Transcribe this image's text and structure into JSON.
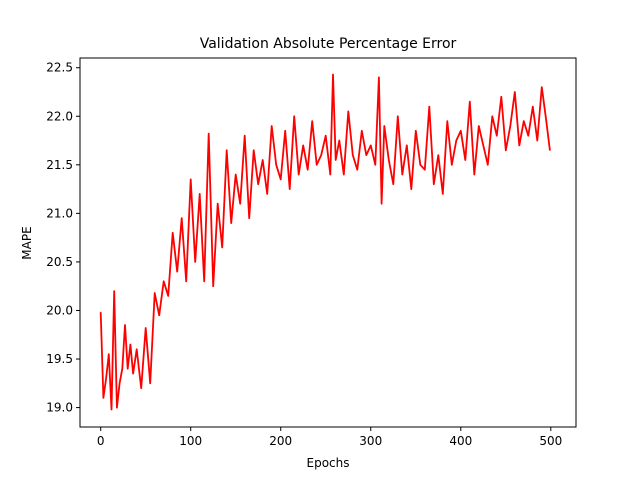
{
  "chart_data": {
    "type": "line",
    "title": "Validation Absolute Percentage Error",
    "xlabel": "Epochs",
    "ylabel": "MAPE",
    "xlim": [
      -23,
      528
    ],
    "ylim": [
      18.8,
      22.6
    ],
    "xticks": [
      0,
      100,
      200,
      300,
      400,
      500
    ],
    "yticks": [
      19.0,
      19.5,
      20.0,
      20.5,
      21.0,
      21.5,
      22.0,
      22.5
    ],
    "xtick_labels": [
      "0",
      "100",
      "200",
      "300",
      "400",
      "500"
    ],
    "ytick_labels": [
      "19.0",
      "19.5",
      "20.0",
      "20.5",
      "21.0",
      "21.5",
      "22.0",
      "22.5"
    ],
    "grid": false,
    "series": [
      {
        "color": "#ff0000",
        "x": [
          0,
          3,
          6,
          9,
          12,
          15,
          18,
          21,
          24,
          27,
          30,
          33,
          36,
          40,
          45,
          50,
          55,
          60,
          65,
          70,
          75,
          80,
          85,
          90,
          95,
          100,
          105,
          110,
          115,
          120,
          125,
          130,
          135,
          140,
          145,
          150,
          155,
          160,
          165,
          170,
          175,
          180,
          185,
          190,
          195,
          200,
          205,
          210,
          215,
          220,
          225,
          230,
          235,
          240,
          245,
          250,
          255,
          258,
          261,
          265,
          270,
          275,
          280,
          285,
          290,
          295,
          300,
          305,
          309,
          312,
          315,
          320,
          325,
          330,
          335,
          340,
          345,
          350,
          355,
          360,
          365,
          370,
          375,
          380,
          385,
          390,
          395,
          400,
          405,
          410,
          415,
          420,
          425,
          430,
          435,
          440,
          445,
          450,
          455,
          460,
          465,
          470,
          475,
          480,
          485,
          490,
          495,
          499
        ],
        "y": [
          19.98,
          19.1,
          19.3,
          19.55,
          18.98,
          20.2,
          19.0,
          19.25,
          19.4,
          19.85,
          19.4,
          19.65,
          19.35,
          19.6,
          19.2,
          19.82,
          19.25,
          20.18,
          19.95,
          20.3,
          20.15,
          20.8,
          20.4,
          20.95,
          20.3,
          21.35,
          20.5,
          21.2,
          20.3,
          21.82,
          20.25,
          21.1,
          20.65,
          21.65,
          20.9,
          21.4,
          21.1,
          21.8,
          20.95,
          21.65,
          21.3,
          21.55,
          21.2,
          21.9,
          21.5,
          21.35,
          21.85,
          21.25,
          22.0,
          21.4,
          21.7,
          21.45,
          21.95,
          21.5,
          21.6,
          21.8,
          21.4,
          22.43,
          21.55,
          21.75,
          21.4,
          22.05,
          21.6,
          21.45,
          21.85,
          21.6,
          21.7,
          21.5,
          22.4,
          21.1,
          21.9,
          21.55,
          21.3,
          22.0,
          21.4,
          21.7,
          21.25,
          21.85,
          21.5,
          21.45,
          22.1,
          21.3,
          21.6,
          21.2,
          21.95,
          21.5,
          21.75,
          21.85,
          21.55,
          22.15,
          21.4,
          21.9,
          21.7,
          21.5,
          22.0,
          21.8,
          22.2,
          21.65,
          21.9,
          22.25,
          21.7,
          21.95,
          21.8,
          22.1,
          21.75,
          22.3,
          21.95,
          21.65
        ]
      }
    ]
  }
}
